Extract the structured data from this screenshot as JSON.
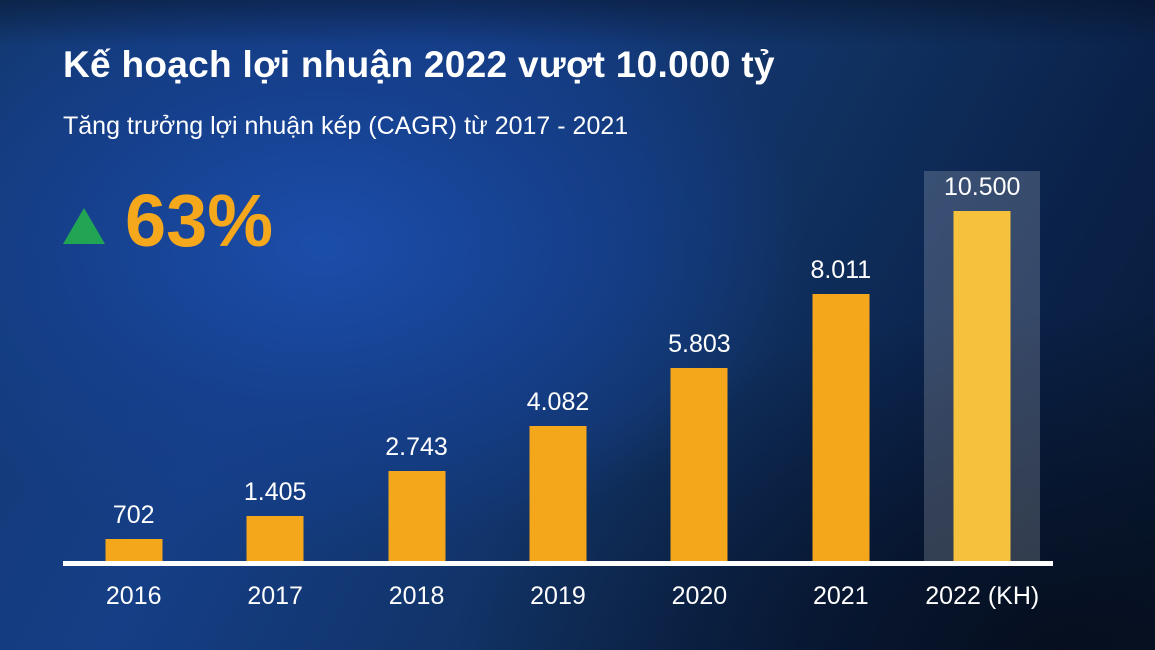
{
  "header": {
    "title": "Kế hoạch lợi nhuận 2022 vượt 10.000 tỷ",
    "subtitle": "Tăng trưởng lợi nhuận kép (CAGR) từ 2017 - 2021"
  },
  "cagr": {
    "value": "63%",
    "icon": "up-triangle"
  },
  "colors": {
    "background_light": "#17459A",
    "background_dark": "#081A33",
    "bar": "#F4A71B",
    "bar_highlight": "#F6C13C",
    "band": "rgba(255,255,255,0.18)",
    "green": "#22A455",
    "accent": "#F5A81C",
    "text": "#FFFFFF"
  },
  "chart_data": {
    "type": "bar",
    "title": "Kế hoạch lợi nhuận 2022 vượt 10.000 tỷ",
    "subtitle": "Tăng trưởng lợi nhuận kép (CAGR) từ 2017 - 2021",
    "annotation": {
      "symbol": "▲",
      "text": "63%"
    },
    "categories": [
      "2016",
      "2017",
      "2018",
      "2019",
      "2020",
      "2021",
      "2022 (KH)"
    ],
    "values": [
      702,
      1405,
      2743,
      4082,
      5803,
      8011,
      10500
    ],
    "value_labels": [
      "702",
      "1.405",
      "2.743",
      "4.082",
      "5.803",
      "8.011",
      "10.500"
    ],
    "ylim": [
      0,
      10500
    ],
    "highlighted_category": "2022 (KH)",
    "grid": false,
    "legend": false
  }
}
